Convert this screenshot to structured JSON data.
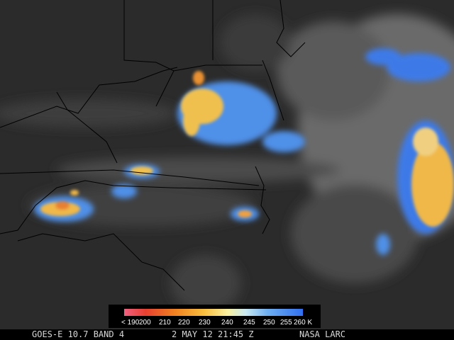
{
  "colorbar": {
    "labels": [
      "< 190",
      "200",
      "210",
      "220",
      "230",
      "240",
      "245",
      "250",
      "255",
      "260 K"
    ]
  },
  "footer": {
    "satellite": "GOES-E 10.7 BAND 4",
    "timestamp": "2 MAY 12 21:45 Z",
    "credit": "NASA LARC"
  }
}
